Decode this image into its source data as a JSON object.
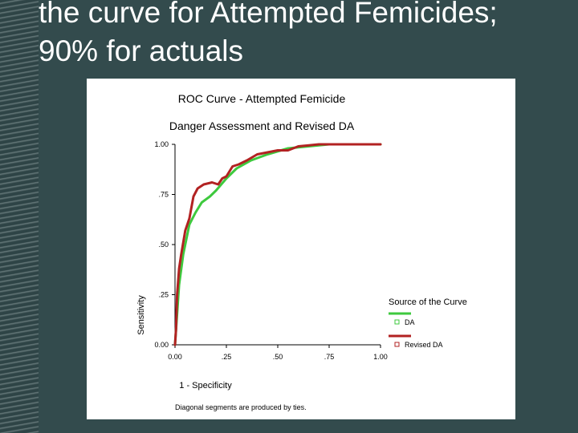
{
  "slide": {
    "title_line1": "the curve for Attempted Femicides;",
    "title_line2": "90% for actuals"
  },
  "chart_data": {
    "type": "line",
    "title": "ROC Curve - Attempted Femicide",
    "subtitle": "Danger Assessment and Revised DA",
    "xlabel": "1 - Specificity",
    "ylabel": "Sensitivity",
    "xlim": [
      0,
      1
    ],
    "ylim": [
      0,
      1
    ],
    "x_ticks": [
      0,
      0.25,
      0.5,
      0.75,
      1
    ],
    "x_tick_labels": [
      "0.00",
      ".25",
      ".50",
      ".75",
      "1.00"
    ],
    "y_ticks": [
      0,
      0.25,
      0.5,
      0.75,
      1
    ],
    "y_tick_labels": [
      "0.00",
      ".25",
      ".50",
      ".75",
      "1.00"
    ],
    "legend_title": "Source of the Curve",
    "legend_position": "right",
    "footnote": "Diagonal segments are produced by ties.",
    "series": [
      {
        "name": "DA",
        "color": "#3ec93e",
        "x": [
          0,
          0.02,
          0.04,
          0.07,
          0.1,
          0.13,
          0.17,
          0.2,
          0.25,
          0.3,
          0.37,
          0.45,
          0.55,
          0.65,
          0.75,
          1
        ],
        "y": [
          0,
          0.3,
          0.45,
          0.6,
          0.66,
          0.71,
          0.74,
          0.77,
          0.83,
          0.88,
          0.92,
          0.95,
          0.98,
          0.99,
          1,
          1
        ]
      },
      {
        "name": "Revised DA",
        "color": "#b22222",
        "x": [
          0,
          0.005,
          0.01,
          0.02,
          0.03,
          0.05,
          0.07,
          0.09,
          0.11,
          0.14,
          0.18,
          0.21,
          0.23,
          0.25,
          0.28,
          0.31,
          0.35,
          0.4,
          0.45,
          0.5,
          0.55,
          0.6,
          0.7,
          0.8,
          1
        ],
        "y": [
          0,
          0.08,
          0.25,
          0.38,
          0.45,
          0.57,
          0.63,
          0.74,
          0.78,
          0.8,
          0.81,
          0.8,
          0.83,
          0.84,
          0.89,
          0.9,
          0.92,
          0.95,
          0.96,
          0.97,
          0.97,
          0.99,
          1,
          1,
          1
        ]
      }
    ]
  }
}
